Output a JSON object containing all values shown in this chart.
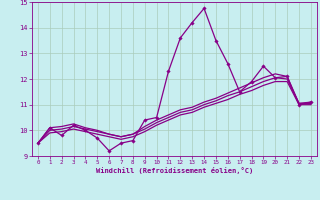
{
  "xlabel": "Windchill (Refroidissement éolien,°C)",
  "xlim": [
    -0.5,
    23.5
  ],
  "ylim": [
    9,
    15
  ],
  "yticks": [
    9,
    10,
    11,
    12,
    13,
    14,
    15
  ],
  "xticks": [
    0,
    1,
    2,
    3,
    4,
    5,
    6,
    7,
    8,
    9,
    10,
    11,
    12,
    13,
    14,
    15,
    16,
    17,
    18,
    19,
    20,
    21,
    22,
    23
  ],
  "bg_color": "#c8eef0",
  "grid_color": "#aaccbb",
  "line_color": "#880088",
  "series": [
    [
      9.5,
      10.1,
      9.8,
      10.2,
      10.0,
      9.7,
      9.2,
      9.5,
      9.6,
      10.4,
      10.5,
      12.3,
      13.6,
      14.2,
      14.75,
      13.5,
      12.6,
      11.5,
      11.9,
      12.5,
      12.05,
      12.1,
      11.0,
      11.1
    ],
    [
      9.5,
      10.1,
      10.15,
      10.25,
      10.1,
      10.0,
      9.85,
      9.75,
      9.85,
      10.15,
      10.4,
      10.6,
      10.8,
      10.9,
      11.1,
      11.25,
      11.45,
      11.65,
      11.85,
      12.05,
      12.2,
      12.1,
      11.05,
      11.1
    ],
    [
      9.5,
      10.0,
      10.05,
      10.15,
      10.05,
      9.95,
      9.85,
      9.75,
      9.85,
      10.05,
      10.3,
      10.5,
      10.7,
      10.8,
      11.0,
      11.15,
      11.35,
      11.5,
      11.7,
      11.9,
      12.05,
      12.0,
      11.05,
      11.05
    ],
    [
      9.5,
      9.9,
      9.95,
      10.05,
      9.95,
      9.85,
      9.75,
      9.65,
      9.75,
      9.95,
      10.2,
      10.4,
      10.6,
      10.7,
      10.9,
      11.05,
      11.2,
      11.4,
      11.55,
      11.75,
      11.9,
      11.9,
      11.0,
      11.0
    ]
  ]
}
